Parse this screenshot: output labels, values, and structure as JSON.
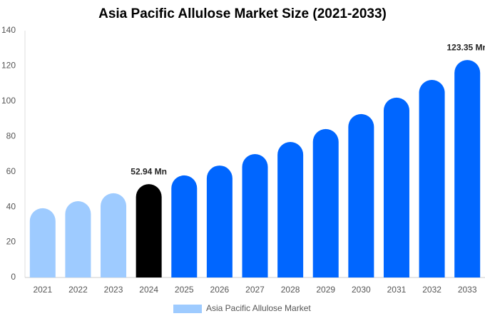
{
  "chart_data": {
    "type": "bar",
    "title": "Asia Pacific Allulose Market Size (2021-2033)",
    "categories": [
      "2021",
      "2022",
      "2023",
      "2024",
      "2025",
      "2026",
      "2027",
      "2028",
      "2029",
      "2030",
      "2031",
      "2032",
      "2033"
    ],
    "series": [
      {
        "name": "Asia Pacific Allulose Market",
        "color": "#9ecbff",
        "values": [
          39.3,
          43.3,
          47.8,
          52.94,
          57.9,
          63.5,
          70,
          76.9,
          84.2,
          92.7,
          102,
          112.1,
          123.35
        ],
        "value_labels": [
          null,
          null,
          null,
          "52.94 Mn",
          null,
          null,
          null,
          null,
          null,
          null,
          null,
          null,
          "123.35 Mn"
        ],
        "bar_colors": [
          "#9ecbff",
          "#9ecbff",
          "#9ecbff",
          "#000000",
          "#0066ff",
          "#0066ff",
          "#0066ff",
          "#0066ff",
          "#0066ff",
          "#0066ff",
          "#0066ff",
          "#0066ff",
          "#0066ff"
        ]
      }
    ],
    "ylim": [
      0,
      140
    ],
    "yticks": [
      0,
      20,
      40,
      60,
      80,
      100,
      120,
      140
    ],
    "grid": false,
    "legend": "bottom"
  }
}
